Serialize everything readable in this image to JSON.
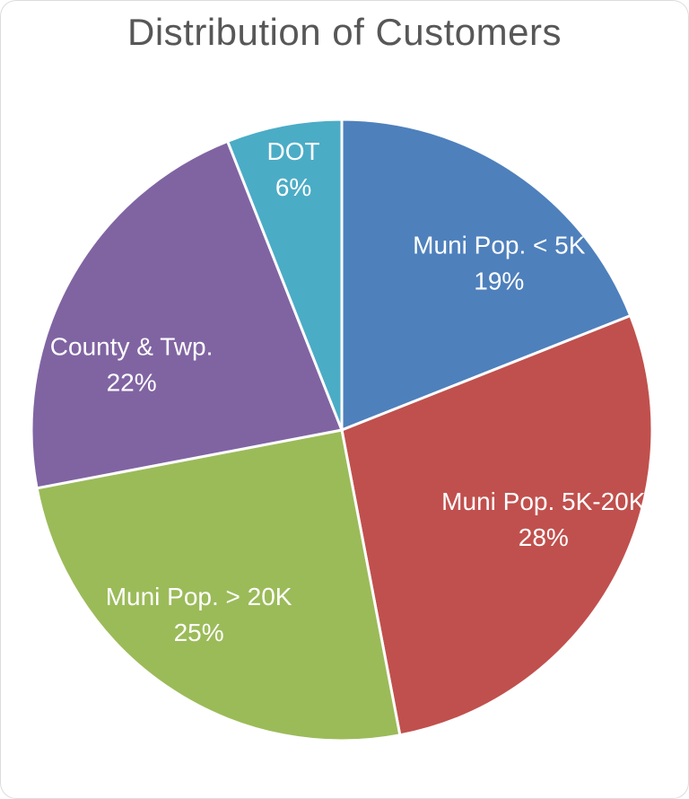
{
  "page": {
    "background_color": "#ffffff"
  },
  "chart_data": {
    "type": "pie",
    "title": "Distribution of Customers",
    "title_color": "#575757",
    "categories": [
      "Muni Pop. < 5K",
      "Muni Pop. 5K-20K",
      "Muni Pop. > 20K",
      "County & Twp.",
      "DOT"
    ],
    "values": [
      19,
      28,
      25,
      22,
      6
    ],
    "percent_labels": [
      "19%",
      "28%",
      "25%",
      "22%",
      "6%"
    ],
    "colors": [
      "#4E80BC",
      "#C0504D",
      "#9BBB59",
      "#8064A2",
      "#4BACC6"
    ],
    "label_color": "#ffffff",
    "slice_border_color": "#ffffff",
    "start_angle_deg": 0,
    "direction": "clockwise",
    "legend_position": "none",
    "label_placement": "inside"
  }
}
